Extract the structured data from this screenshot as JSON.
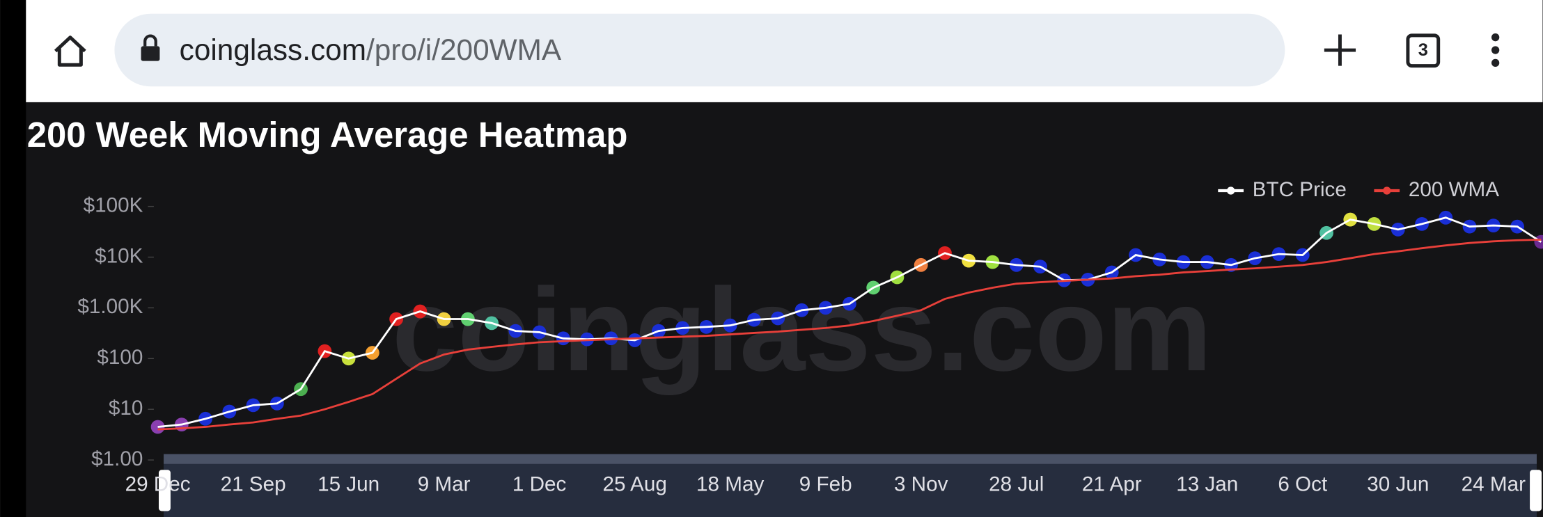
{
  "browser": {
    "url_host": "coinglass.com",
    "url_path": "/pro/i/200WMA",
    "tab_count": "3"
  },
  "chart_data": {
    "type": "line",
    "title": "200 Week Moving Average Heatmap",
    "watermark": "coinglass.com",
    "yscale": "log",
    "legend": "top-right",
    "categories": [
      "29 Dec",
      null,
      null,
      null,
      "21 Sep",
      null,
      null,
      null,
      "15 Jun",
      null,
      null,
      null,
      "9 Mar",
      null,
      null,
      null,
      "1 Dec",
      null,
      null,
      null,
      "25 Aug",
      null,
      null,
      null,
      "18 May",
      null,
      null,
      null,
      "9 Feb",
      null,
      null,
      null,
      "3 Nov",
      null,
      null,
      null,
      "28 Jul",
      null,
      null,
      null,
      "21 Apr",
      null,
      null,
      null,
      "13 Jan",
      null,
      null,
      null,
      "6 Oct",
      null,
      null,
      null,
      "30 Jun",
      null,
      null,
      null,
      "24 Mar",
      null,
      null
    ],
    "series": [
      {
        "name": "BTC Price",
        "color": "#ffffff",
        "values": [
          4.5,
          5,
          6.5,
          9,
          12,
          13,
          25,
          140,
          100,
          130,
          600,
          850,
          600,
          600,
          500,
          350,
          330,
          250,
          240,
          250,
          230,
          350,
          400,
          420,
          450,
          580,
          620,
          900,
          1000,
          1200,
          2500,
          4000,
          7000,
          12000,
          8500,
          8000,
          7000,
          6500,
          3500,
          3600,
          5000,
          11000,
          9000,
          8000,
          8000,
          7000,
          9500,
          11500,
          11000,
          30000,
          55000,
          45000,
          35000,
          45000,
          60000,
          40000,
          42000,
          40000,
          20000
        ],
        "point_colors": [
          "#8a3fb0",
          "#8a3fb0",
          "#1a2fd6",
          "#1a2fd6",
          "#1a2fd6",
          "#1a2fd6",
          "#4caf50",
          "#e02020",
          "#c8e03c",
          "#f5a030",
          "#e02020",
          "#e02020",
          "#f0d040",
          "#60d070",
          "#50c0a0",
          "#1a2fd6",
          "#1a2fd6",
          "#1a2fd6",
          "#1a2fd6",
          "#1a2fd6",
          "#1a2fd6",
          "#1a2fd6",
          "#1a2fd6",
          "#1a2fd6",
          "#1a2fd6",
          "#1a2fd6",
          "#1a2fd6",
          "#1a2fd6",
          "#1a2fd6",
          "#1a2fd6",
          "#60d070",
          "#a0e040",
          "#f08040",
          "#e02020",
          "#f0e040",
          "#a0e040",
          "#1a2fd6",
          "#1a2fd6",
          "#1a2fd6",
          "#1a2fd6",
          "#1a2fd6",
          "#1a2fd6",
          "#1a2fd6",
          "#1a2fd6",
          "#1a2fd6",
          "#1a2fd6",
          "#1a2fd6",
          "#1a2fd6",
          "#1a2fd6",
          "#50c0a0",
          "#e0e040",
          "#c0e040",
          "#1a2fd6",
          "#1a2fd6",
          "#1a2fd6",
          "#1a2fd6",
          "#1a2fd6",
          "#1a2fd6",
          "#6a2a90"
        ]
      },
      {
        "name": "200 WMA",
        "color": "#e8403a",
        "values": [
          4,
          4.2,
          4.5,
          5,
          5.5,
          6.5,
          7.5,
          10,
          14,
          20,
          40,
          80,
          120,
          150,
          170,
          190,
          210,
          220,
          230,
          240,
          250,
          260,
          270,
          280,
          300,
          320,
          340,
          370,
          400,
          450,
          550,
          700,
          900,
          1500,
          2000,
          2500,
          3000,
          3200,
          3400,
          3600,
          3800,
          4200,
          4500,
          5000,
          5300,
          5700,
          6000,
          6500,
          7000,
          8000,
          9500,
          11500,
          13000,
          15000,
          17000,
          19000,
          20500,
          21500,
          22000
        ]
      }
    ],
    "ylim": [
      1,
      100000
    ],
    "yticks": [
      {
        "value": 1,
        "label": "$1.00"
      },
      {
        "value": 10,
        "label": "$10"
      },
      {
        "value": 100,
        "label": "$100"
      },
      {
        "value": 1000,
        "label": "$1.00K"
      },
      {
        "value": 10000,
        "label": "$10K"
      },
      {
        "value": 100000,
        "label": "$100K"
      }
    ]
  }
}
